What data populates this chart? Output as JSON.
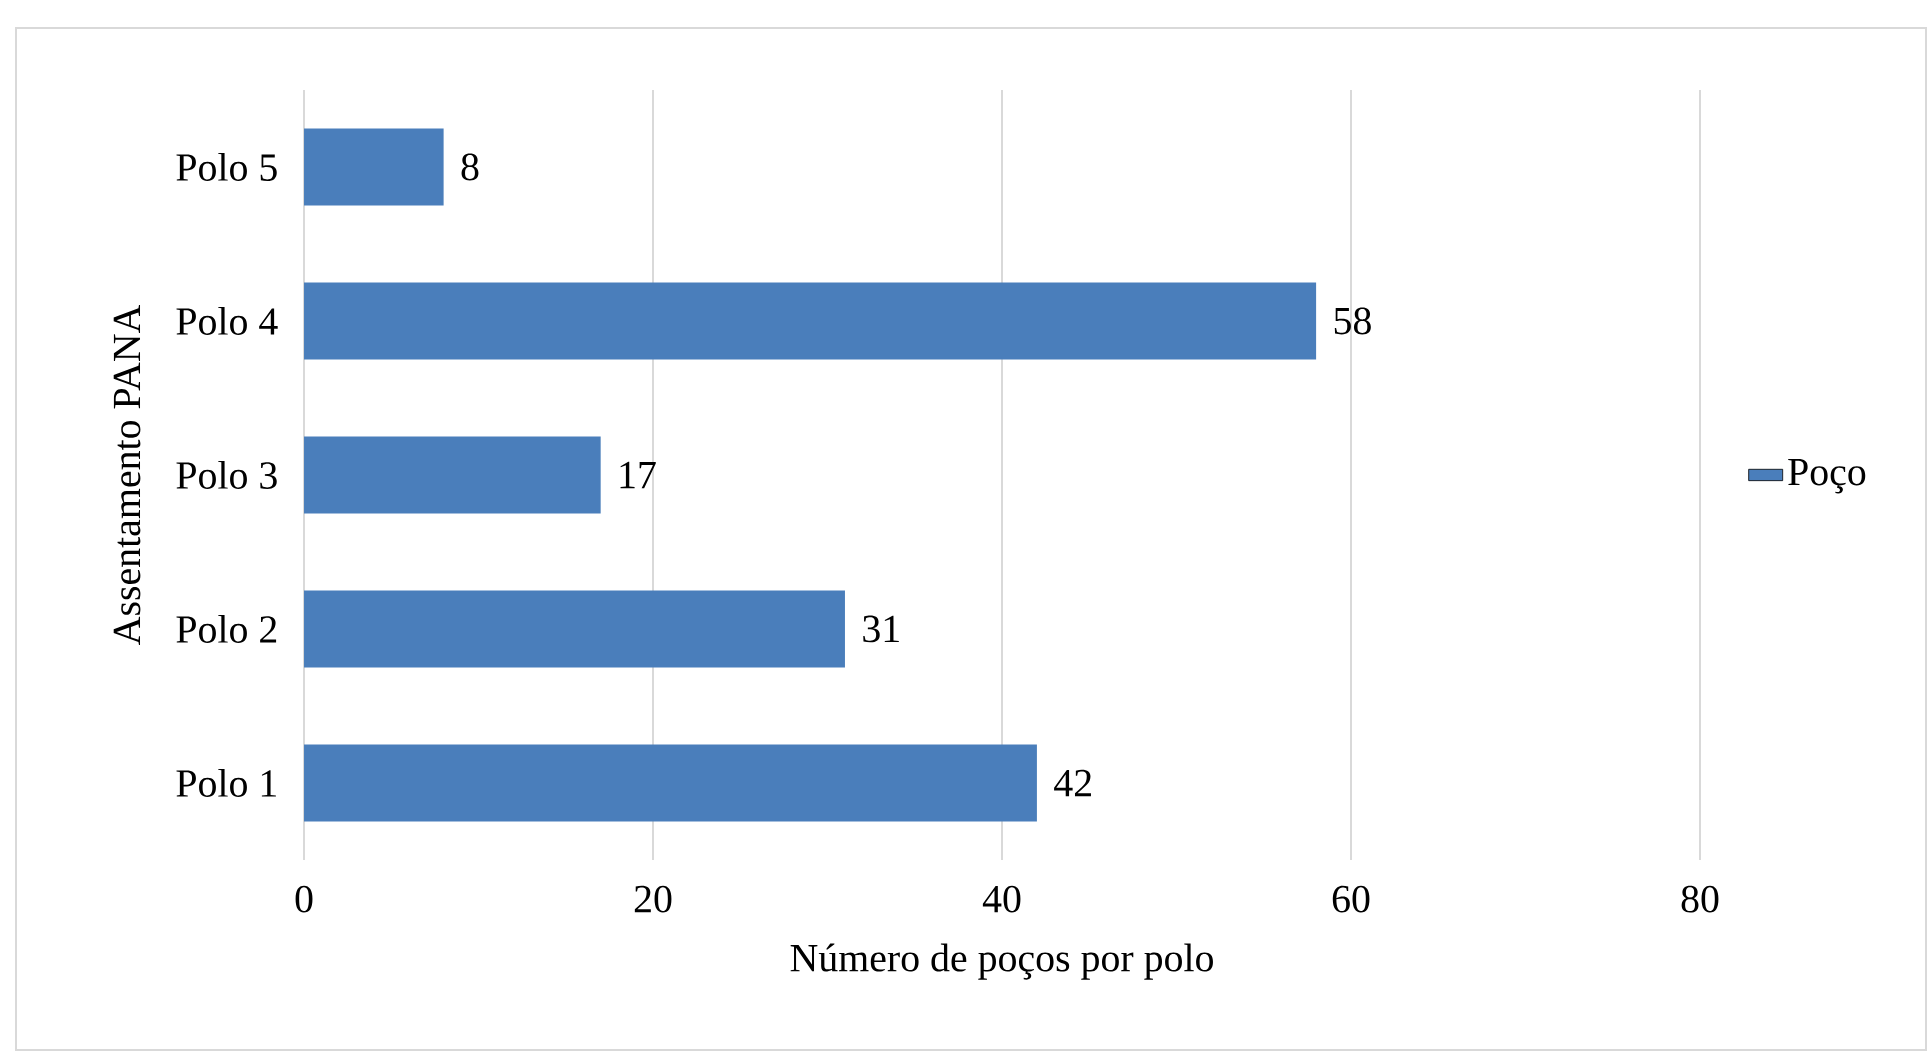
{
  "chart_data": {
    "type": "bar",
    "orientation": "horizontal",
    "categories": [
      "Polo 5",
      "Polo 4",
      "Polo 3",
      "Polo 2",
      "Polo 1"
    ],
    "series": [
      {
        "name": "Poço",
        "color": "#4a7ebb",
        "values": [
          8,
          58,
          17,
          31,
          42
        ]
      }
    ],
    "xlabel": "Número de poços por polo",
    "ylabel": "Assentamento PANA",
    "xlim": [
      0,
      80
    ],
    "xticks": [
      0,
      20,
      40,
      60,
      80
    ],
    "grid": "x",
    "legend": "right",
    "data_labels": true
  }
}
